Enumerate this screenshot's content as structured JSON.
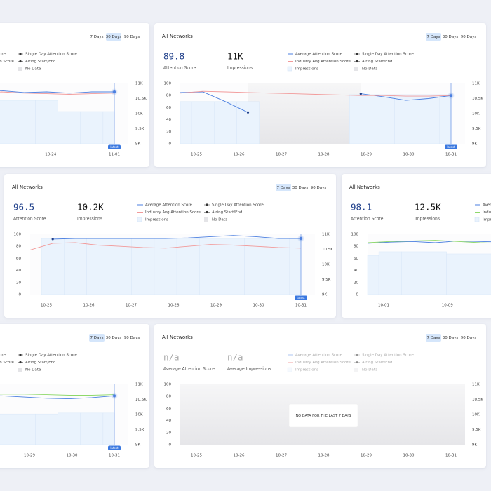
{
  "cards": [
    {
      "tabs": [
        "7 Days",
        "30 Days",
        "90 Days"
      ],
      "active_tab": 1,
      "metrics": [
        {
          "value": "",
          "label": ""
        }
      ],
      "series": [
        {
          "name": "Average Attention Score",
          "color": "#4b7fe0",
          "values": [
            85,
            86,
            87,
            86,
            85,
            86,
            87,
            88,
            85,
            86,
            84,
            86,
            86
          ]
        },
        {
          "name": "Industry Avg Attention Score",
          "color": "#f29a9a",
          "values": [
            83,
            84,
            83,
            82,
            83,
            82,
            83,
            86,
            84,
            83,
            82,
            83,
            84
          ]
        },
        {
          "name": "Impressions",
          "color": "#eaf3fd",
          "axis": "y2",
          "values": [
            10440,
            10440,
            10440,
            10440,
            10440,
            10440,
            10440,
            10440,
            10440,
            10440,
            10070,
            10070,
            10070
          ]
        }
      ],
      "legend_extra": [
        "Single Day Attention Score",
        "Airing Start/End",
        "No Data"
      ],
      "ylim": [
        0,
        100
      ],
      "yticks": [
        0,
        20,
        40,
        60,
        80,
        100
      ],
      "y2lim": [
        9000,
        11000
      ],
      "y2ticks": [
        {
          "value": 9000,
          "label": "9K"
        },
        {
          "value": 9500,
          "label": "9.5K"
        },
        {
          "value": 10000,
          "label": "10K"
        },
        {
          "value": 10500,
          "label": "10.5K"
        },
        {
          "value": 11000,
          "label": "11K"
        }
      ],
      "x_labels": [
        null,
        null,
        null,
        "10-24",
        "11-01"
      ],
      "badge": "latest"
    },
    {
      "title": "All Networks",
      "tabs": [
        "7 Days",
        "30 Days",
        "90 Days"
      ],
      "active_tab": 0,
      "metrics": [
        {
          "value": 89.8,
          "label": "Attention Score"
        },
        {
          "value": "11K",
          "label": "Impressions"
        }
      ],
      "series": [
        {
          "name": "Average Attention Score",
          "color": "#4b7fe0",
          "values": [
            85,
            86,
            70,
            52,
            null,
            null,
            null,
            null,
            83,
            78,
            72,
            75,
            80
          ]
        },
        {
          "name": "Industry Avg Attention Score",
          "color": "#f29a9a",
          "values": [
            84,
            87,
            86,
            85,
            84,
            83,
            82,
            81,
            80,
            80,
            79,
            79,
            80
          ]
        },
        {
          "name": "Impressions",
          "color": "#eaf3fd",
          "axis": "y2",
          "values": [
            10400,
            10400,
            10400,
            10400,
            null,
            null,
            null,
            null,
            10630,
            10630,
            10630,
            10630,
            10630
          ]
        }
      ],
      "legend_extra": [
        "Single Day Attention Score",
        "Airing Start/End",
        "No Data"
      ],
      "ylim": [
        0,
        100
      ],
      "yticks": [
        0,
        20,
        40,
        60,
        80,
        100
      ],
      "y2lim": [
        9000,
        11000
      ],
      "y2ticks": [
        {
          "value": 9000,
          "label": "9K"
        },
        {
          "value": 9500,
          "label": "9.5K"
        },
        {
          "value": 10000,
          "label": "10K"
        },
        {
          "value": 10500,
          "label": "10.5K"
        },
        {
          "value": 11000,
          "label": "11K"
        }
      ],
      "x_labels": [
        "10-25",
        "10-26",
        "10-27",
        "10-28",
        "10-29",
        "10-30",
        "10-31"
      ],
      "badge": "latest"
    },
    {
      "title": "All Networks",
      "tabs": [
        "7 Days",
        "30 Days",
        "90 Days"
      ],
      "active_tab": 0,
      "metrics": [
        {
          "value": 96.5,
          "label": "Attention Score"
        },
        {
          "value": "10.2K",
          "label": "Impressions"
        }
      ],
      "series": [
        {
          "name": "Average Attention Score",
          "color": "#4b7fe0",
          "values": [
            null,
            92,
            93,
            93,
            93,
            93,
            93,
            94,
            96,
            98,
            96,
            93,
            93
          ]
        },
        {
          "name": "Industry Avg Attention Score",
          "color": "#f29a9a",
          "values": [
            74,
            85,
            86,
            82,
            80,
            78,
            77,
            80,
            83,
            82,
            80,
            78,
            77
          ]
        },
        {
          "name": "Impressions",
          "color": "#eaf3fd",
          "axis": "y2",
          "values": [
            null,
            10860,
            10860,
            10860,
            10860,
            10860,
            10860,
            10860,
            10860,
            10860,
            10860,
            10860,
            10860
          ]
        }
      ],
      "legend_extra": [
        "Single Day Attention Score",
        "Airing Start/End",
        "No Data"
      ],
      "ylim": [
        0,
        100
      ],
      "yticks": [
        0,
        20,
        40,
        60,
        80,
        100
      ],
      "y2lim": [
        9000,
        11000
      ],
      "y2ticks": [
        {
          "value": 9000,
          "label": "9K"
        },
        {
          "value": 9500,
          "label": "9.5K"
        },
        {
          "value": 10000,
          "label": "10K"
        },
        {
          "value": 10500,
          "label": "10.5K"
        },
        {
          "value": 11000,
          "label": "11K"
        }
      ],
      "x_labels": [
        "10-25",
        "10-26",
        "10-27",
        "10-28",
        "10-29",
        "10-30",
        "10-31"
      ],
      "badge": "latest"
    },
    {
      "title": "All Networks",
      "metrics": [
        {
          "value": 98.1,
          "label": "Attention Score"
        },
        {
          "value": "12.5K",
          "label": "Impressions"
        }
      ],
      "series": [
        {
          "name": "Average Attention Score",
          "color": "#4b7fe0",
          "values": [
            85,
            87,
            88,
            86,
            89,
            88,
            87,
            88,
            87,
            86,
            88,
            87,
            88
          ]
        },
        {
          "name": "Industry Avg Attention Score",
          "color": "#8ed86b",
          "values": [
            86,
            88,
            89,
            90,
            88,
            86,
            85,
            87,
            88,
            87,
            86,
            88,
            87
          ]
        },
        {
          "name": "Impressions",
          "color": "#eaf3fd",
          "axis": "y2",
          "values": [
            10300,
            10420,
            10420,
            10420,
            10350,
            10350,
            10350,
            10350,
            10350,
            10350,
            10350,
            10350,
            10350
          ]
        }
      ],
      "ylim": [
        0,
        100
      ],
      "yticks": [
        0,
        20,
        40,
        60,
        80,
        100
      ],
      "y2lim": [
        9000,
        11000
      ],
      "x_labels": [
        "10-01",
        "10-09",
        null,
        null,
        null
      ]
    },
    {
      "tabs": [
        "7 Days",
        "30 Days",
        "90 Days"
      ],
      "active_tab": 0,
      "metrics": [
        {
          "value": "",
          "label": ""
        }
      ],
      "series": [
        {
          "name": "Average Attention Score",
          "color": "#4b7fe0",
          "values": [
            80,
            80,
            80,
            80,
            80,
            80,
            80,
            81,
            79,
            77,
            76,
            78,
            81
          ]
        },
        {
          "name": "Industry Avg Attention Score",
          "color": "#8ed86b",
          "values": [
            84,
            84,
            84,
            84,
            84,
            84,
            84,
            84,
            84,
            83,
            82,
            82,
            83
          ]
        },
        {
          "name": "Impressions",
          "color": "#eaf3fd",
          "axis": "y2",
          "values": [
            10020,
            10020,
            10020,
            10020,
            10020,
            10020,
            10020,
            10020,
            10020,
            10020,
            10050,
            10050,
            10050
          ]
        }
      ],
      "legend_extra": [
        "Single Day Attention Score",
        "Airing Start/End",
        "No Data"
      ],
      "ylim": [
        0,
        100
      ],
      "y2lim": [
        9000,
        11000
      ],
      "y2ticks": [
        {
          "value": 9000,
          "label": "9K"
        },
        {
          "value": 9500,
          "label": "9.5K"
        },
        {
          "value": 10000,
          "label": "10K"
        },
        {
          "value": 10500,
          "label": "10.5K"
        },
        {
          "value": 11000,
          "label": "11K"
        }
      ],
      "x_labels": [
        null,
        null,
        null,
        null,
        "10-29",
        "10-30",
        "10-31"
      ],
      "badge": "latest"
    },
    {
      "title": "All Networks",
      "tabs": [
        "7 Days",
        "30 Days",
        "90 Days"
      ],
      "active_tab": 0,
      "metrics": [
        {
          "value": "n/a",
          "label": "Average Attention Score"
        },
        {
          "value": "n/a",
          "label": "Average Impressions"
        }
      ],
      "series": [
        {
          "name": "Average Attention Score",
          "color": "#4b7fe0"
        },
        {
          "name": "Industry Avg Attention Score",
          "color": "#f29a9a"
        },
        {
          "name": "Impressions",
          "color": "#eaf3fd",
          "axis": "y2"
        }
      ],
      "legend_extra": [
        "Single Day Attention Score",
        "Airing Start/End",
        "No Data"
      ],
      "ylim": [
        0,
        100
      ],
      "yticks": [
        0,
        20,
        40,
        60,
        80,
        100
      ],
      "y2lim": [
        9000,
        11000
      ],
      "y2ticks": [
        {
          "value": 9000,
          "label": "9K"
        },
        {
          "value": 9500,
          "label": "9.5K"
        },
        {
          "value": 10000,
          "label": "10K"
        },
        {
          "value": 10500,
          "label": "10.5K"
        },
        {
          "value": 11000,
          "label": "11K"
        }
      ],
      "x_labels": [
        "10-25",
        "10-26",
        "10-27",
        "10-28",
        "10-29",
        "10-30",
        "10-31"
      ],
      "message": "NO DATA FOR THE LAST 7 DAYS"
    }
  ]
}
